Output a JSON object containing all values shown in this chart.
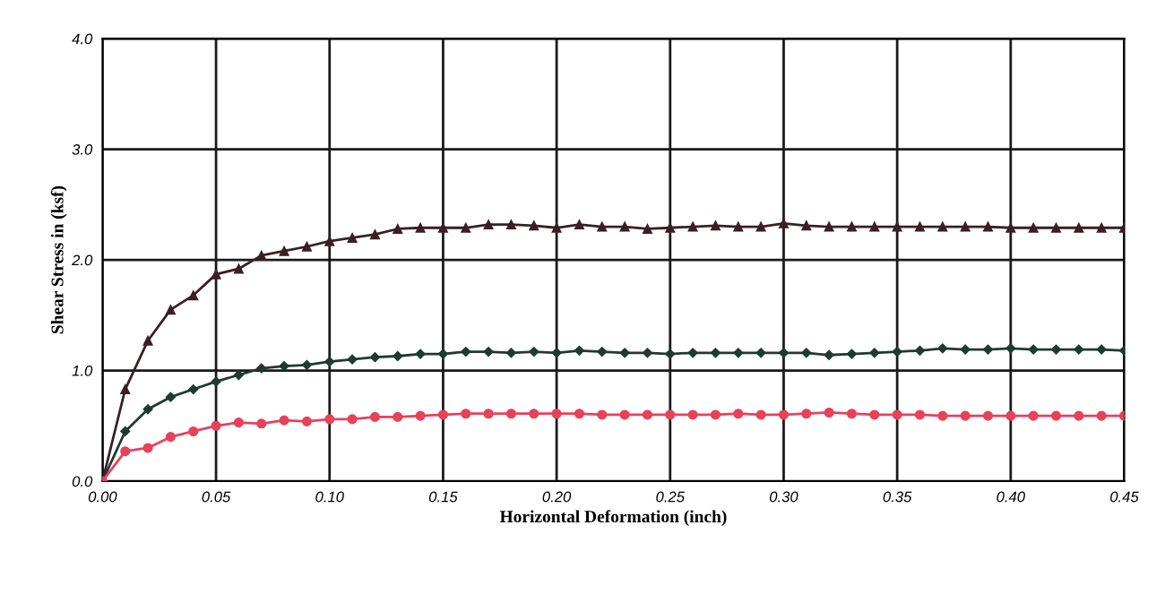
{
  "chart_data": {
    "type": "line",
    "xlabel": "Horizontal Deformation (inch)",
    "ylabel": "Shear Stress in (ksf)",
    "x": [
      0.0,
      0.01,
      0.02,
      0.03,
      0.04,
      0.05,
      0.06,
      0.07,
      0.08,
      0.09,
      0.1,
      0.11,
      0.12,
      0.13,
      0.14,
      0.15,
      0.16,
      0.17,
      0.18,
      0.19,
      0.2,
      0.21,
      0.22,
      0.23,
      0.24,
      0.25,
      0.26,
      0.27,
      0.28,
      0.29,
      0.3,
      0.31,
      0.32,
      0.33,
      0.34,
      0.35,
      0.36,
      0.37,
      0.38,
      0.39,
      0.4,
      0.41,
      0.42,
      0.43,
      0.44,
      0.45
    ],
    "series": [
      {
        "color": "#3a1f24",
        "marker": "triangle",
        "values": [
          0,
          0.83,
          1.27,
          1.55,
          1.68,
          1.87,
          1.92,
          2.04,
          2.08,
          2.12,
          2.17,
          2.2,
          2.23,
          2.28,
          2.29,
          2.29,
          2.29,
          2.32,
          2.32,
          2.31,
          2.29,
          2.32,
          2.3,
          2.3,
          2.28,
          2.29,
          2.3,
          2.31,
          2.3,
          2.3,
          2.33,
          2.31,
          2.3,
          2.3,
          2.3,
          2.3,
          2.3,
          2.3,
          2.3,
          2.3,
          2.29,
          2.29,
          2.29,
          2.29,
          2.29,
          2.29
        ]
      },
      {
        "color": "#1f3a30",
        "marker": "diamond",
        "values": [
          0,
          0.45,
          0.65,
          0.76,
          0.83,
          0.9,
          0.96,
          1.02,
          1.04,
          1.05,
          1.08,
          1.1,
          1.12,
          1.13,
          1.15,
          1.15,
          1.17,
          1.17,
          1.16,
          1.17,
          1.16,
          1.18,
          1.17,
          1.16,
          1.16,
          1.15,
          1.16,
          1.16,
          1.16,
          1.16,
          1.16,
          1.16,
          1.14,
          1.15,
          1.16,
          1.17,
          1.18,
          1.2,
          1.19,
          1.19,
          1.2,
          1.19,
          1.19,
          1.19,
          1.19,
          1.18
        ]
      },
      {
        "color": "#e8415a",
        "marker": "circle",
        "values": [
          0,
          0.27,
          0.3,
          0.4,
          0.45,
          0.5,
          0.53,
          0.52,
          0.55,
          0.54,
          0.56,
          0.56,
          0.58,
          0.58,
          0.59,
          0.6,
          0.61,
          0.61,
          0.61,
          0.61,
          0.61,
          0.61,
          0.6,
          0.6,
          0.6,
          0.6,
          0.6,
          0.6,
          0.61,
          0.6,
          0.6,
          0.61,
          0.62,
          0.61,
          0.6,
          0.6,
          0.6,
          0.59,
          0.59,
          0.59,
          0.59,
          0.59,
          0.59,
          0.59,
          0.59,
          0.59
        ]
      }
    ],
    "xlim": [
      0,
      0.45
    ],
    "xticks": [
      {
        "value": 0,
        "label": "0.00"
      },
      {
        "value": 0.05,
        "label": "0.05"
      },
      {
        "value": 0.1,
        "label": "0.10"
      },
      {
        "value": 0.15,
        "label": "0.15"
      },
      {
        "value": 0.2,
        "label": "0.20"
      },
      {
        "value": 0.25,
        "label": "0.25"
      },
      {
        "value": 0.3,
        "label": "0.30"
      },
      {
        "value": 0.35,
        "label": "0.35"
      },
      {
        "value": 0.4,
        "label": "0.40"
      },
      {
        "value": 0.45,
        "label": "0.45"
      }
    ],
    "ylim": [
      0,
      4.0
    ],
    "yticks": [
      {
        "value": 0,
        "label": "0.0"
      },
      {
        "value": 1,
        "label": "1.0"
      },
      {
        "value": 2,
        "label": "2.0"
      },
      {
        "value": 3,
        "label": "3.0"
      },
      {
        "value": 4,
        "label": "4.0"
      }
    ],
    "grid": true,
    "line_style": "solid"
  }
}
